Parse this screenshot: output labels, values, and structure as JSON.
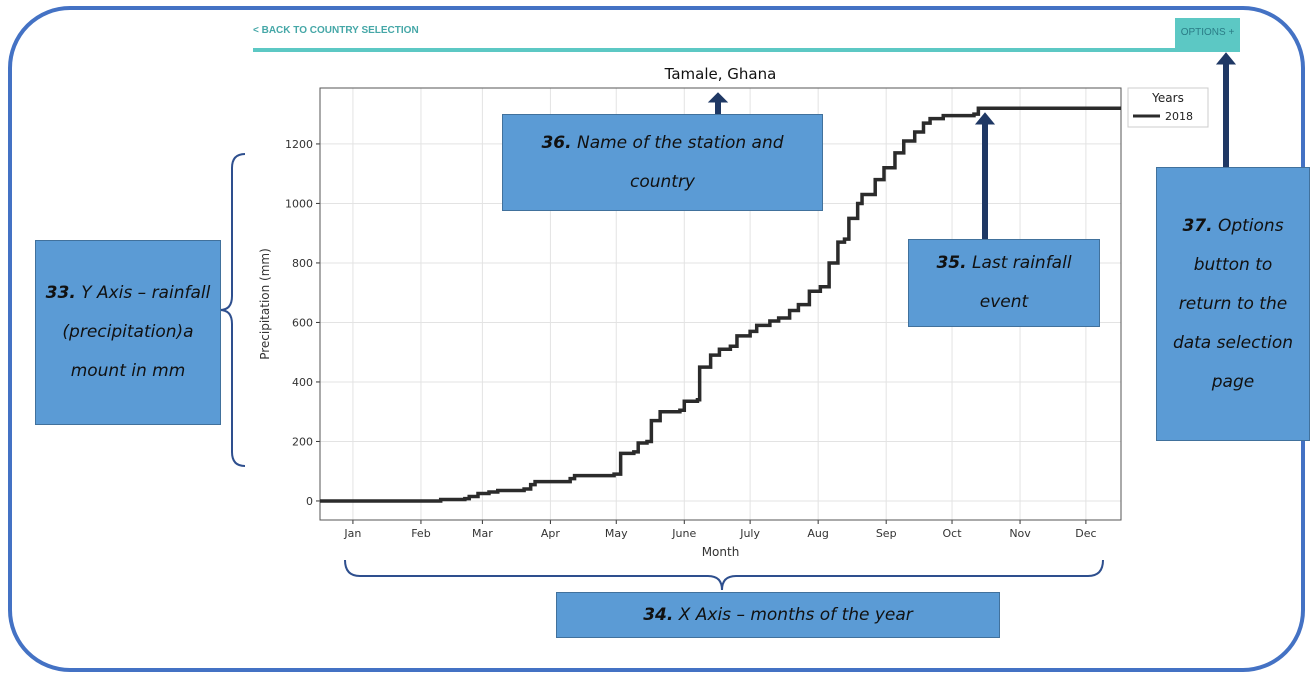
{
  "nav": {
    "back": "< BACK TO COUNTRY SELECTION",
    "options": "OPTIONS +"
  },
  "chart_data": {
    "type": "line",
    "title": "Tamale, Ghana",
    "x_label": "Month",
    "y_label": "Precipitation (mm)",
    "xlim": [
      0,
      365
    ],
    "ylim": [
      -64,
      1388
    ],
    "xticks": [
      {
        "value": 15,
        "label": "Jan"
      },
      {
        "value": 46,
        "label": "Feb"
      },
      {
        "value": 74,
        "label": "Mar"
      },
      {
        "value": 105,
        "label": "Apr"
      },
      {
        "value": 135,
        "label": "May"
      },
      {
        "value": 166,
        "label": "June"
      },
      {
        "value": 196,
        "label": "July"
      },
      {
        "value": 227,
        "label": "Aug"
      },
      {
        "value": 258,
        "label": "Sep"
      },
      {
        "value": 288,
        "label": "Oct"
      },
      {
        "value": 319,
        "label": "Nov"
      },
      {
        "value": 349,
        "label": "Dec"
      }
    ],
    "yticks": [
      0,
      200,
      400,
      600,
      800,
      1000,
      1200
    ],
    "grid": true,
    "legend_title": "Years",
    "legend": "top-right",
    "x": [
      0,
      52,
      55,
      66,
      68,
      72,
      77,
      81,
      93,
      96,
      98,
      114,
      116,
      134,
      137,
      143,
      145,
      149,
      151,
      155,
      164,
      166,
      172,
      173,
      178,
      182,
      187,
      190,
      196,
      199,
      205,
      209,
      214,
      218,
      223,
      228,
      232,
      236,
      239,
      241,
      245,
      247,
      253,
      257,
      262,
      266,
      271,
      275,
      278,
      284,
      298,
      300,
      365
    ],
    "series": [
      {
        "name": "2018",
        "color": "#2b2b2b",
        "values": [
          0,
          0,
          5,
          8,
          15,
          25,
          30,
          35,
          40,
          55,
          65,
          75,
          85,
          90,
          160,
          165,
          195,
          200,
          270,
          300,
          305,
          335,
          340,
          450,
          490,
          510,
          520,
          555,
          570,
          590,
          605,
          615,
          640,
          660,
          705,
          720,
          800,
          870,
          880,
          950,
          1000,
          1030,
          1080,
          1120,
          1170,
          1210,
          1240,
          1270,
          1285,
          1295,
          1300,
          1320,
          1320
        ]
      }
    ]
  },
  "callouts": [
    {
      "number": "33.",
      "text": "Y Axis – rainfall (precipitation)a mount in mm"
    },
    {
      "number": "34.",
      "text": "X Axis –  months  of the year"
    },
    {
      "number": "35.",
      "text": "Last rainfall event"
    },
    {
      "number": "36.",
      "text": "Name of the station and country"
    },
    {
      "number": "37.",
      "text": "Options button to return to the data selection page"
    }
  ]
}
